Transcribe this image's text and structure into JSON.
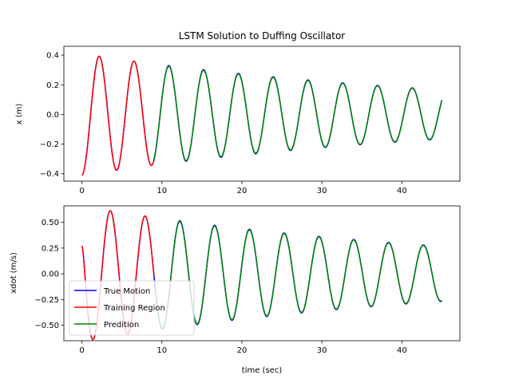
{
  "chart_data": [
    {
      "type": "line",
      "title": "LSTM Solution to Duffing Oscillator",
      "xlabel": "",
      "ylabel": "x (m)",
      "xlim": [
        -2.25,
        47.25
      ],
      "ylim": [
        -0.45,
        0.46
      ],
      "xticks": [
        0,
        10,
        20,
        30,
        40
      ],
      "yticks": [
        -0.4,
        -0.2,
        0.0,
        0.2,
        0.4
      ],
      "ytick_labels": [
        "−0.4",
        "−0.2",
        "0.0",
        "0.2",
        "0.4"
      ],
      "grid": false,
      "legend": null,
      "model": {
        "x0": -0.41,
        "omega": 1.445,
        "damping": 0.02,
        "training_end": 9.0,
        "prediction_start": 9.0,
        "t_end": 45.0
      },
      "series": [
        {
          "name": "True Motion",
          "color": "#0000ff",
          "t_range": [
            0,
            45
          ]
        },
        {
          "name": "Training Region",
          "color": "#ff0000",
          "t_range": [
            0,
            9
          ]
        },
        {
          "name": "Predition",
          "color": "#008000",
          "t_range": [
            9,
            45
          ]
        }
      ]
    },
    {
      "type": "line",
      "title": "",
      "xlabel": "time (sec)",
      "ylabel": "xdot (m/s)",
      "xlim": [
        -2.25,
        47.25
      ],
      "ylim": [
        -0.65,
        0.66
      ],
      "xticks": [
        0,
        10,
        20,
        30,
        40
      ],
      "yticks": [
        -0.5,
        -0.25,
        0.0,
        0.25,
        0.5
      ],
      "ytick_labels": [
        "−0.50",
        "−0.25",
        "0.00",
        "0.25",
        "0.50"
      ],
      "grid": false,
      "legend": "lower-left",
      "model": {
        "v0": 0.27,
        "omega": 1.445,
        "damping": 0.02,
        "training_end": 9.0,
        "prediction_start": 9.2,
        "t_end": 45.0
      },
      "series": [
        {
          "name": "True Motion",
          "color": "#0000ff",
          "t_range": [
            0,
            45
          ]
        },
        {
          "name": "Training Region",
          "color": "#ff0000",
          "t_range": [
            0,
            9
          ]
        },
        {
          "name": "Predition",
          "color": "#008000",
          "t_range": [
            9.2,
            45
          ]
        }
      ]
    }
  ]
}
